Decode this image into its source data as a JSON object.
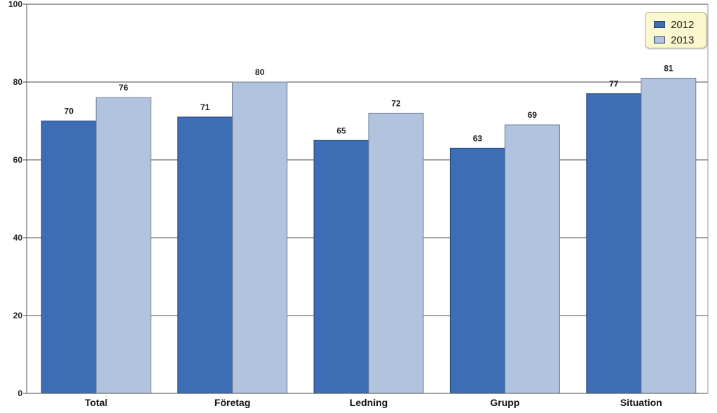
{
  "chart_data": {
    "type": "bar",
    "categories": [
      "Total",
      "Företag",
      "Ledning",
      "Grupp",
      "Situation"
    ],
    "series": [
      {
        "name": "2012",
        "values": [
          70,
          71,
          65,
          63,
          77
        ],
        "color": "#3d6db5"
      },
      {
        "name": "2013",
        "values": [
          76,
          80,
          72,
          69,
          81
        ],
        "color": "#b1c3dd"
      }
    ],
    "ylim": [
      0,
      100
    ],
    "yticks": [
      0,
      20,
      40,
      60,
      80,
      100
    ],
    "grid": true,
    "legend_position": "top-right"
  }
}
